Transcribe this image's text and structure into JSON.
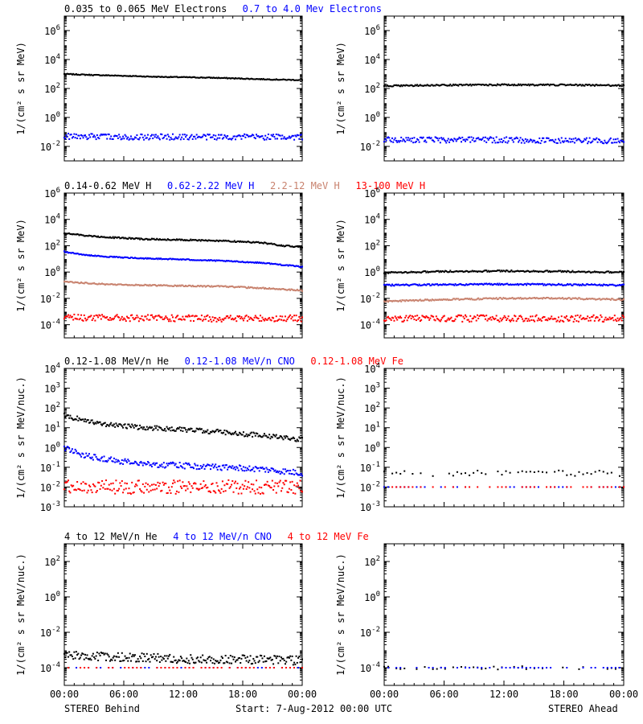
{
  "colors": {
    "black": "#000000",
    "blue": "#0000ff",
    "tan": "#c8826e",
    "red": "#ff0000"
  },
  "footer": {
    "left": "STEREO Behind",
    "center": "Start:  7-Aug-2012 00:00 UTC",
    "right": "STEREO Ahead"
  },
  "chart_data": [
    {
      "type": "scatter",
      "id": "electrons-behind",
      "legend": [
        {
          "label": "0.035 to 0.065 MeV Electrons",
          "color": "#000000"
        },
        {
          "label": "0.7 to 4.0 Mev Electrons",
          "color": "#0000ff"
        }
      ],
      "ylabel": "1/(cm² s sr MeV)",
      "yscale": "log",
      "ylim": [
        0.001,
        10000000
      ],
      "yticks": [
        {
          "v": 0.01,
          "b": "10",
          "e": "-2"
        },
        {
          "v": 1,
          "b": "10",
          "e": "0"
        },
        {
          "v": 100,
          "b": "10",
          "e": "2"
        },
        {
          "v": 10000,
          "b": "10",
          "e": "4"
        },
        {
          "v": 1000000,
          "b": "10",
          "e": "6"
        }
      ],
      "xlim": [
        0,
        24
      ],
      "xticks": [
        "00:00",
        "06:00",
        "12:00",
        "18:00",
        "00:00"
      ],
      "series": [
        {
          "color": "#000000",
          "x": [
            0,
            3,
            6,
            9,
            12,
            15,
            18,
            21,
            24
          ],
          "y": [
            1000,
            850,
            750,
            650,
            600,
            550,
            480,
            420,
            380
          ],
          "noise": 0.03
        },
        {
          "color": "#0000ff",
          "x": [
            0,
            6,
            12,
            18,
            24
          ],
          "y": [
            0.05,
            0.045,
            0.045,
            0.045,
            0.045
          ],
          "noise": 0.2
        }
      ]
    },
    {
      "type": "scatter",
      "id": "electrons-ahead",
      "legend": [],
      "ylabel": "1/(cm² s sr MeV)",
      "yscale": "log",
      "ylim": [
        0.001,
        10000000
      ],
      "yticks": [
        {
          "v": 0.01,
          "b": "10",
          "e": "-2"
        },
        {
          "v": 1,
          "b": "10",
          "e": "0"
        },
        {
          "v": 100,
          "b": "10",
          "e": "2"
        },
        {
          "v": 10000,
          "b": "10",
          "e": "4"
        },
        {
          "v": 1000000,
          "b": "10",
          "e": "6"
        }
      ],
      "xlim": [
        0,
        24
      ],
      "xticks": [
        "00:00",
        "06:00",
        "12:00",
        "18:00",
        "00:00"
      ],
      "series": [
        {
          "color": "#000000",
          "x": [
            0,
            6,
            12,
            18,
            24
          ],
          "y": [
            150,
            170,
            180,
            175,
            160
          ],
          "noise": 0.05
        },
        {
          "color": "#0000ff",
          "x": [
            0,
            6,
            12,
            18,
            24
          ],
          "y": [
            0.03,
            0.028,
            0.028,
            0.025,
            0.025
          ],
          "noise": 0.2
        }
      ]
    },
    {
      "type": "scatter",
      "id": "protons-behind",
      "legend": [
        {
          "label": "0.14-0.62 MeV H",
          "color": "#000000"
        },
        {
          "label": "0.62-2.22 MeV H",
          "color": "#0000ff"
        },
        {
          "label": "2.2-12 MeV H",
          "color": "#c8826e"
        },
        {
          "label": "13-100 MeV H",
          "color": "#ff0000"
        }
      ],
      "ylabel": "1/(cm² s sr MeV)",
      "yscale": "log",
      "ylim": [
        1e-05,
        1000000
      ],
      "yticks": [
        {
          "v": 0.0001,
          "b": "10",
          "e": "-4"
        },
        {
          "v": 0.01,
          "b": "10",
          "e": "-2"
        },
        {
          "v": 1,
          "b": "10",
          "e": "0"
        },
        {
          "v": 100,
          "b": "10",
          "e": "2"
        },
        {
          "v": 10000,
          "b": "10",
          "e": "4"
        },
        {
          "v": 1000000,
          "b": "10",
          "e": "6"
        }
      ],
      "xlim": [
        0,
        24
      ],
      "xticks": [
        "00:00",
        "06:00",
        "12:00",
        "18:00",
        "00:00"
      ],
      "series": [
        {
          "color": "#000000",
          "x": [
            0,
            2,
            4,
            8,
            12,
            16,
            20,
            22,
            24
          ],
          "y": [
            900,
            600,
            450,
            320,
            280,
            230,
            170,
            100,
            80
          ],
          "noise": 0.05
        },
        {
          "color": "#0000ff",
          "x": [
            0,
            2,
            4,
            8,
            12,
            16,
            20,
            24
          ],
          "y": [
            35,
            20,
            15,
            11,
            9,
            7,
            5,
            2.5
          ],
          "noise": 0.04
        },
        {
          "color": "#c8826e",
          "x": [
            0,
            4,
            8,
            12,
            16,
            20,
            24
          ],
          "y": [
            0.18,
            0.12,
            0.1,
            0.09,
            0.08,
            0.06,
            0.04
          ],
          "noise": 0.05
        },
        {
          "color": "#ff0000",
          "x": [
            0,
            6,
            12,
            18,
            24
          ],
          "y": [
            0.00035,
            0.00032,
            0.0003,
            0.0003,
            0.0003
          ],
          "noise": 0.25
        }
      ]
    },
    {
      "type": "scatter",
      "id": "protons-ahead",
      "legend": [],
      "ylabel": "1/(cm² s sr MeV)",
      "yscale": "log",
      "ylim": [
        1e-05,
        1000000
      ],
      "yticks": [
        {
          "v": 0.0001,
          "b": "10",
          "e": "-4"
        },
        {
          "v": 0.01,
          "b": "10",
          "e": "-2"
        },
        {
          "v": 1,
          "b": "10",
          "e": "0"
        },
        {
          "v": 100,
          "b": "10",
          "e": "2"
        },
        {
          "v": 10000,
          "b": "10",
          "e": "4"
        },
        {
          "v": 1000000,
          "b": "10",
          "e": "6"
        }
      ],
      "xlim": [
        0,
        24
      ],
      "xticks": [
        "00:00",
        "06:00",
        "12:00",
        "18:00",
        "00:00"
      ],
      "series": [
        {
          "color": "#000000",
          "x": [
            0,
            6,
            12,
            18,
            24
          ],
          "y": [
            0.9,
            1.1,
            1.2,
            1.1,
            0.95
          ],
          "noise": 0.06
        },
        {
          "color": "#0000ff",
          "x": [
            0,
            6,
            12,
            18,
            24
          ],
          "y": [
            0.1,
            0.11,
            0.12,
            0.11,
            0.1
          ],
          "noise": 0.06
        },
        {
          "color": "#c8826e",
          "x": [
            0,
            6,
            12,
            18,
            24
          ],
          "y": [
            0.006,
            0.008,
            0.01,
            0.01,
            0.008
          ],
          "noise": 0.06
        },
        {
          "color": "#ff0000",
          "x": [
            0,
            6,
            12,
            18,
            24
          ],
          "y": [
            0.0003,
            0.0003,
            0.0003,
            0.0003,
            0.0003
          ],
          "noise": 0.25
        }
      ]
    },
    {
      "type": "scatter",
      "id": "heavy-low-behind",
      "legend": [
        {
          "label": "0.12-1.08 MeV/n He",
          "color": "#000000"
        },
        {
          "label": "0.12-1.08 MeV/n CNO",
          "color": "#0000ff"
        },
        {
          "label": "0.12-1.08 MeV Fe",
          "color": "#ff0000"
        }
      ],
      "ylabel": "1/(cm² s sr MeV/nuc.)",
      "yscale": "log",
      "ylim": [
        0.001,
        10000
      ],
      "yticks": [
        {
          "v": 0.001,
          "b": "10",
          "e": "-3"
        },
        {
          "v": 0.01,
          "b": "10",
          "e": "-2"
        },
        {
          "v": 0.1,
          "b": "10",
          "e": "-1"
        },
        {
          "v": 1,
          "b": "10",
          "e": "0"
        },
        {
          "v": 10,
          "b": "10",
          "e": "1"
        },
        {
          "v": 100,
          "b": "10",
          "e": "2"
        },
        {
          "v": 1000,
          "b": "10",
          "e": "3"
        },
        {
          "v": 10000,
          "b": "10",
          "e": "4"
        }
      ],
      "xlim": [
        0,
        24
      ],
      "xticks": [
        "00:00",
        "06:00",
        "12:00",
        "18:00",
        "00:00"
      ],
      "series": [
        {
          "color": "#000000",
          "x": [
            0,
            2,
            4,
            8,
            12,
            16,
            20,
            24
          ],
          "y": [
            40,
            25,
            15,
            10,
            8,
            6,
            4,
            2.5
          ],
          "noise": 0.12
        },
        {
          "color": "#0000ff",
          "x": [
            0,
            2,
            4,
            8,
            12,
            16,
            20,
            24
          ],
          "y": [
            1.0,
            0.4,
            0.25,
            0.15,
            0.12,
            0.1,
            0.08,
            0.05
          ],
          "noise": 0.15
        },
        {
          "color": "#ff0000",
          "x": [
            0,
            6,
            12,
            18,
            24
          ],
          "y": [
            0.01,
            0.01,
            0.01,
            0.01,
            0.01
          ],
          "noise": 0.35
        }
      ]
    },
    {
      "type": "scatter",
      "id": "heavy-low-ahead",
      "legend": [],
      "ylabel": "1/(cm² s sr MeV/nuc.)",
      "yscale": "log",
      "ylim": [
        0.001,
        10000
      ],
      "yticks": [
        {
          "v": 0.001,
          "b": "10",
          "e": "-3"
        },
        {
          "v": 0.01,
          "b": "10",
          "e": "-2"
        },
        {
          "v": 0.1,
          "b": "10",
          "e": "-1"
        },
        {
          "v": 1,
          "b": "10",
          "e": "0"
        },
        {
          "v": 10,
          "b": "10",
          "e": "1"
        },
        {
          "v": 100,
          "b": "10",
          "e": "2"
        },
        {
          "v": 1000,
          "b": "10",
          "e": "3"
        },
        {
          "v": 10000,
          "b": "10",
          "e": "4"
        }
      ],
      "xlim": [
        0,
        24
      ],
      "xticks": [
        "00:00",
        "06:00",
        "12:00",
        "18:00",
        "00:00"
      ],
      "series": [
        {
          "color": "#000000",
          "x": [
            0,
            24
          ],
          "y": [
            0.05,
            0.05
          ],
          "noise": 0.15,
          "sparse": true
        },
        {
          "color": "#0000ff",
          "x": [
            0,
            24
          ],
          "y": [
            0.01,
            0.01
          ],
          "noise": 0.0,
          "sparse": true
        },
        {
          "color": "#ff0000",
          "x": [
            0,
            24
          ],
          "y": [
            0.01,
            0.01
          ],
          "noise": 0.0,
          "sparse": true
        }
      ]
    },
    {
      "type": "scatter",
      "id": "heavy-high-behind",
      "legend": [
        {
          "label": "4 to 12 MeV/n He",
          "color": "#000000"
        },
        {
          "label": "4 to 12 MeV/n CNO",
          "color": "#0000ff"
        },
        {
          "label": "4 to 12 MeV Fe",
          "color": "#ff0000"
        }
      ],
      "ylabel": "1/(cm² s sr MeV/nuc.)",
      "yscale": "log",
      "ylim": [
        1e-05,
        1000
      ],
      "yticks": [
        {
          "v": 0.0001,
          "b": "10",
          "e": "-4"
        },
        {
          "v": 0.01,
          "b": "10",
          "e": "-2"
        },
        {
          "v": 1,
          "b": "10",
          "e": "0"
        },
        {
          "v": 100,
          "b": "10",
          "e": "2"
        }
      ],
      "xlim": [
        0,
        24
      ],
      "xticks": [
        "00:00",
        "06:00",
        "12:00",
        "18:00",
        "00:00"
      ],
      "series": [
        {
          "color": "#000000",
          "x": [
            0,
            6,
            12,
            18,
            24
          ],
          "y": [
            0.0005,
            0.0004,
            0.0003,
            0.0003,
            0.00025
          ],
          "noise": 0.25
        },
        {
          "color": "#0000ff",
          "x": [
            0,
            24
          ],
          "y": [
            0.0001,
            0.0001
          ],
          "noise": 0.0,
          "sparse": true
        },
        {
          "color": "#ff0000",
          "x": [
            0,
            24
          ],
          "y": [
            0.0001,
            0.0001
          ],
          "noise": 0.0,
          "sparse": true
        }
      ]
    },
    {
      "type": "scatter",
      "id": "heavy-high-ahead",
      "legend": [],
      "ylabel": "1/(cm² s sr MeV/nuc.)",
      "yscale": "log",
      "ylim": [
        1e-05,
        1000
      ],
      "yticks": [
        {
          "v": 0.0001,
          "b": "10",
          "e": "-4"
        },
        {
          "v": 0.01,
          "b": "10",
          "e": "-2"
        },
        {
          "v": 1,
          "b": "10",
          "e": "0"
        },
        {
          "v": 100,
          "b": "10",
          "e": "2"
        }
      ],
      "xlim": [
        0,
        24
      ],
      "xticks": [
        "00:00",
        "06:00",
        "12:00",
        "18:00",
        "00:00"
      ],
      "series": [
        {
          "color": "#000000",
          "x": [
            0,
            24
          ],
          "y": [
            0.0001,
            0.0001
          ],
          "noise": 0.1,
          "sparse": true
        },
        {
          "color": "#0000ff",
          "x": [
            0,
            24
          ],
          "y": [
            0.0001,
            0.0001
          ],
          "noise": 0.0,
          "sparse": true
        }
      ]
    }
  ]
}
